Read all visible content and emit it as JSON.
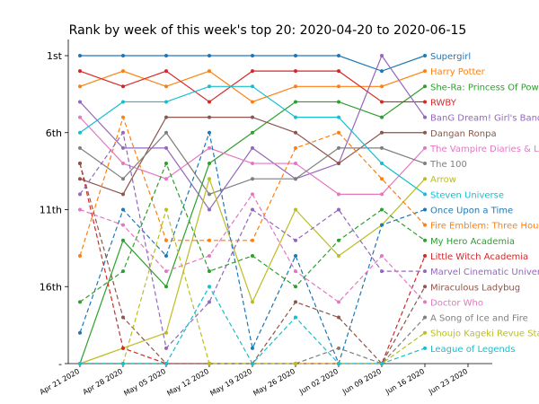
{
  "chart_data": {
    "type": "line",
    "title": "Rank by week of this week's top 20: 2020-04-20 to 2020-06-15",
    "xlabel": "",
    "ylabel": "",
    "x": [
      "2020-04-20",
      "2020-04-27",
      "2020-05-04",
      "2020-05-11",
      "2020-05-18",
      "2020-05-25",
      "2020-06-01",
      "2020-06-08",
      "2020-06-15"
    ],
    "x_tick_labels": [
      "Apr 21 2020",
      "Apr 28 2020",
      "May 05 2020",
      "May 12 2020",
      "May 19 2020",
      "May 26 2020",
      "Jun 02 2020",
      "Jun 09 2020",
      "Jun 16 2020",
      "Jun 23 2020"
    ],
    "y_tick_values": [
      1,
      6,
      11,
      16,
      21
    ],
    "y_tick_labels": [
      "1st",
      "6th",
      "11th",
      "16th",
      "-"
    ],
    "y_axis_inverted": true,
    "ylim": [
      21,
      1
    ],
    "grid": false,
    "legend_position": "right",
    "series": [
      {
        "name": "Supergirl",
        "color": "#1f77b4",
        "dashed": false,
        "values": [
          1,
          1,
          1,
          1,
          1,
          1,
          1,
          2,
          1
        ]
      },
      {
        "name": "Harry Potter",
        "color": "#ff7f0e",
        "dashed": false,
        "values": [
          3,
          2,
          3,
          2,
          4,
          3,
          3,
          3,
          2
        ]
      },
      {
        "name": "She-Ra: Princess Of Power",
        "color": "#2ca02c",
        "dashed": false,
        "values": [
          21,
          13,
          16,
          8,
          6,
          4,
          4,
          5,
          3
        ]
      },
      {
        "name": "RWBY",
        "color": "#d62728",
        "dashed": false,
        "values": [
          2,
          3,
          2,
          4,
          2,
          2,
          2,
          4,
          4
        ]
      },
      {
        "name": "BanG Dream! Girl's Band Party!",
        "color": "#9467bd",
        "dashed": false,
        "values": [
          4,
          7,
          7,
          11,
          7,
          9,
          8,
          1,
          5
        ]
      },
      {
        "name": "Dangan Ronpa",
        "color": "#8c564b",
        "dashed": false,
        "values": [
          9,
          10,
          5,
          5,
          5,
          6,
          8,
          6,
          6
        ]
      },
      {
        "name": "The Vampire Diaries & Legacies",
        "color": "#e377c2",
        "dashed": false,
        "values": [
          5,
          8,
          9,
          7,
          8,
          8,
          10,
          10,
          7
        ]
      },
      {
        "name": "The 100",
        "color": "#7f7f7f",
        "dashed": false,
        "values": [
          7,
          9,
          6,
          10,
          9,
          9,
          7,
          7,
          8
        ]
      },
      {
        "name": "Arrow",
        "color": "#bcbd22",
        "dashed": false,
        "values": [
          21,
          20,
          19,
          9,
          17,
          11,
          14,
          12,
          9
        ]
      },
      {
        "name": "Steven Universe",
        "color": "#17becf",
        "dashed": false,
        "values": [
          6,
          4,
          4,
          3,
          3,
          5,
          5,
          8,
          10
        ]
      },
      {
        "name": "Once Upon a Time",
        "color": "#1f77b4",
        "dashed": true,
        "values": [
          19,
          11,
          14,
          6,
          20,
          14,
          21,
          12,
          11
        ]
      },
      {
        "name": "Fire Emblem: Three Houses",
        "color": "#ff7f0e",
        "dashed": true,
        "values": [
          14,
          5,
          13,
          13,
          13,
          7,
          6,
          9,
          12
        ]
      },
      {
        "name": "My Hero Academia",
        "color": "#2ca02c",
        "dashed": true,
        "values": [
          17,
          15,
          8,
          15,
          14,
          16,
          13,
          11,
          13
        ]
      },
      {
        "name": "Little Witch Academia",
        "color": "#d62728",
        "dashed": true,
        "values": [
          8,
          20,
          21,
          21,
          21,
          21,
          21,
          21,
          14
        ]
      },
      {
        "name": "Marvel Cinematic Universe",
        "color": "#9467bd",
        "dashed": true,
        "values": [
          10,
          6,
          20,
          17,
          11,
          13,
          11,
          15,
          15
        ]
      },
      {
        "name": "Miraculous Ladybug",
        "color": "#8c564b",
        "dashed": true,
        "values": [
          8,
          18,
          21,
          21,
          21,
          17,
          18,
          21,
          16
        ]
      },
      {
        "name": "Doctor Who",
        "color": "#e377c2",
        "dashed": true,
        "values": [
          11,
          12,
          15,
          14,
          10,
          15,
          17,
          14,
          17
        ]
      },
      {
        "name": "A Song of Ice and Fire",
        "color": "#7f7f7f",
        "dashed": true,
        "values": [
          21,
          21,
          21,
          21,
          21,
          21,
          20,
          21,
          18
        ]
      },
      {
        "name": "Shoujo Kageki Revue Starlight",
        "color": "#bcbd22",
        "dashed": true,
        "values": [
          21,
          21,
          11,
          21,
          21,
          21,
          21,
          21,
          19
        ]
      },
      {
        "name": "League of Legends",
        "color": "#17becf",
        "dashed": true,
        "values": [
          21,
          21,
          21,
          16,
          21,
          18,
          21,
          21,
          20
        ]
      }
    ]
  }
}
